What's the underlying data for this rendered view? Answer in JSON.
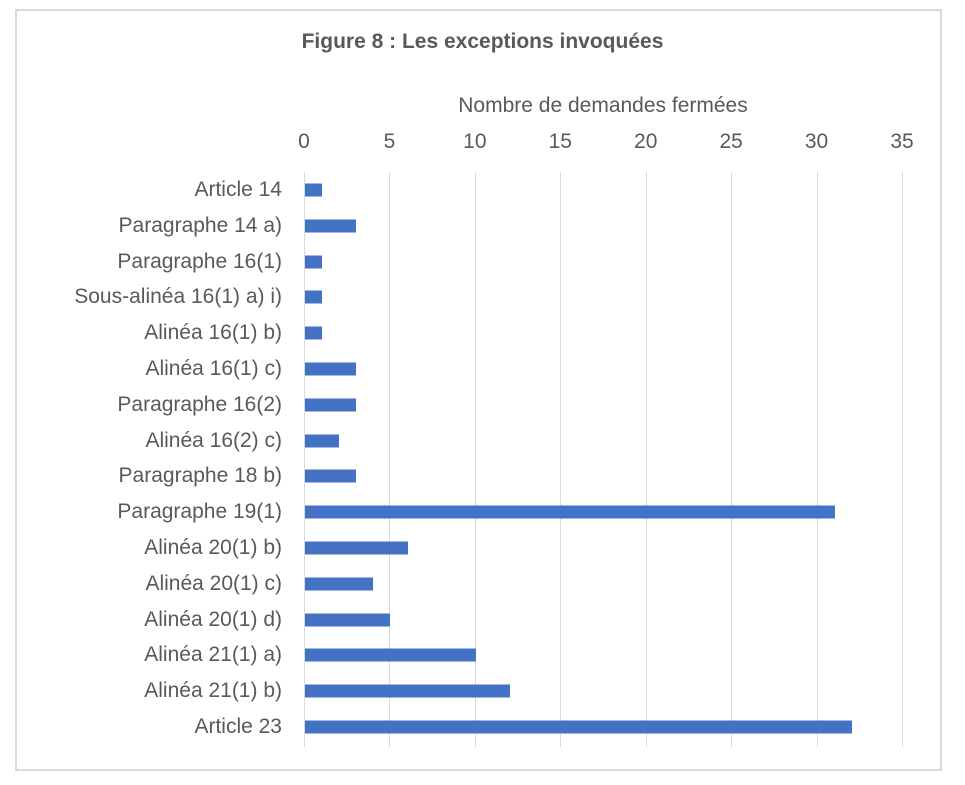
{
  "chart_data": {
    "type": "bar",
    "orientation": "horizontal",
    "title": "Figure 8 : Les exceptions invoquées",
    "xlabel": "Nombre de demandes fermées",
    "ylabel": "",
    "xlim": [
      0,
      35
    ],
    "xticks": [
      "0",
      "5",
      "10",
      "15",
      "20",
      "25",
      "30",
      "35"
    ],
    "xaxis_position": "top",
    "grid": true,
    "legend": null,
    "bar_color": "#4472c4",
    "categories": [
      "Article 14",
      "Paragraphe 14 a)",
      "Paragraphe 16(1)",
      "Sous-alinéa 16(1) a) i)",
      "Alinéa 16(1) b)",
      "Alinéa 16(1) c)",
      "Paragraphe 16(2)",
      "Alinéa 16(2) c)",
      "Paragraphe 18 b)",
      "Paragraphe 19(1)",
      "Alinéa 20(1) b)",
      "Alinéa 20(1) c)",
      "Alinéa 20(1) d)",
      "Alinéa 21(1) a)",
      "Alinéa 21(1) b)",
      "Article 23"
    ],
    "values": [
      1,
      3,
      1,
      1,
      1,
      3,
      3,
      2,
      3,
      31,
      6,
      4,
      5,
      10,
      12,
      32
    ]
  }
}
